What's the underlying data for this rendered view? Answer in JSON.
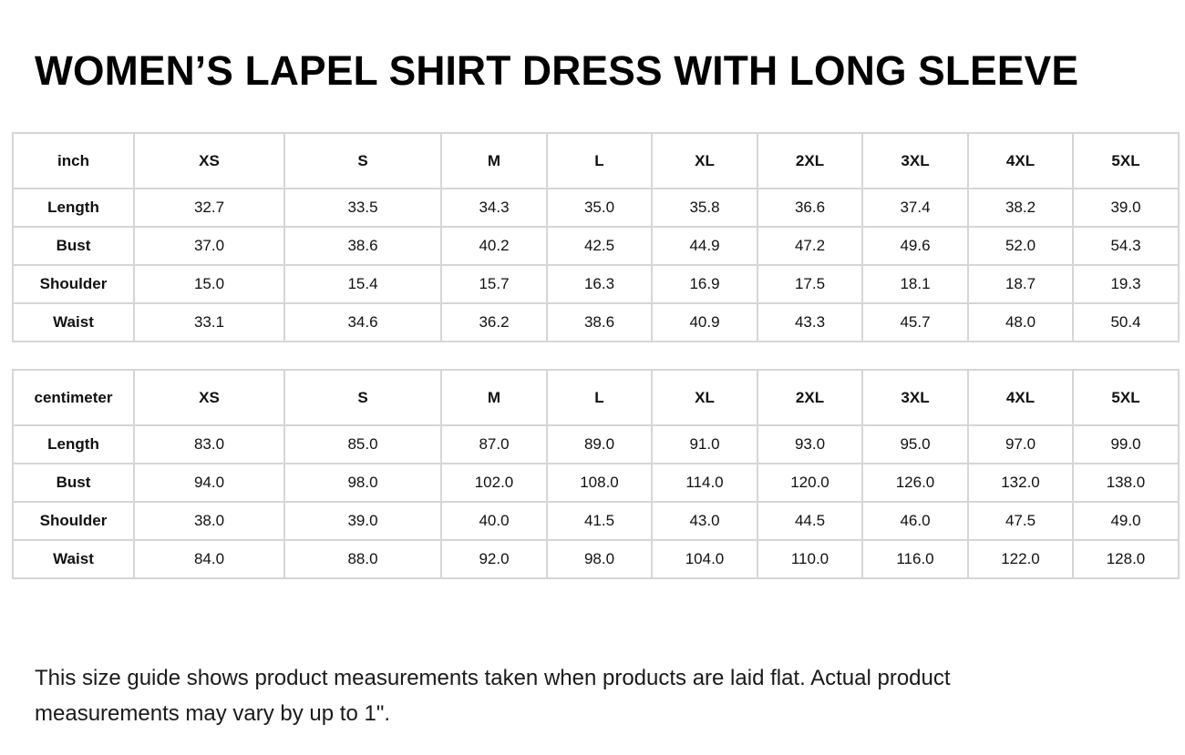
{
  "title": "WOMEN’S LAPEL SHIRT DRESS WITH LONG SLEEVE",
  "sizes": [
    "XS",
    "S",
    "M",
    "L",
    "XL",
    "2XL",
    "3XL",
    "4XL",
    "5XL"
  ],
  "tables": [
    {
      "unit": "inch",
      "rows": [
        {
          "label": "Length",
          "values": [
            "32.7",
            "33.5",
            "34.3",
            "35.0",
            "35.8",
            "36.6",
            "37.4",
            "38.2",
            "39.0"
          ]
        },
        {
          "label": "Bust",
          "values": [
            "37.0",
            "38.6",
            "40.2",
            "42.5",
            "44.9",
            "47.2",
            "49.6",
            "52.0",
            "54.3"
          ]
        },
        {
          "label": "Shoulder",
          "values": [
            "15.0",
            "15.4",
            "15.7",
            "16.3",
            "16.9",
            "17.5",
            "18.1",
            "18.7",
            "19.3"
          ]
        },
        {
          "label": "Waist",
          "values": [
            "33.1",
            "34.6",
            "36.2",
            "38.6",
            "40.9",
            "43.3",
            "45.7",
            "48.0",
            "50.4"
          ]
        }
      ]
    },
    {
      "unit": "centimeter",
      "rows": [
        {
          "label": "Length",
          "values": [
            "83.0",
            "85.0",
            "87.0",
            "89.0",
            "91.0",
            "93.0",
            "95.0",
            "97.0",
            "99.0"
          ]
        },
        {
          "label": "Bust",
          "values": [
            "94.0",
            "98.0",
            "102.0",
            "108.0",
            "114.0",
            "120.0",
            "126.0",
            "132.0",
            "138.0"
          ]
        },
        {
          "label": "Shoulder",
          "values": [
            "38.0",
            "39.0",
            "40.0",
            "41.5",
            "43.0",
            "44.5",
            "46.0",
            "47.5",
            "49.0"
          ]
        },
        {
          "label": "Waist",
          "values": [
            "84.0",
            "88.0",
            "92.0",
            "98.0",
            "104.0",
            "110.0",
            "116.0",
            "122.0",
            "128.0"
          ]
        }
      ]
    }
  ],
  "note": "This size guide shows product measurements taken when products are laid flat. Actual product measurements may vary by up to 1\"."
}
